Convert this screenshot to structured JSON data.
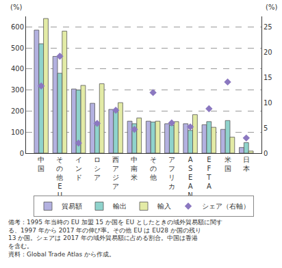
{
  "chart_data": {
    "type": "bar",
    "categories": [
      "中国",
      "その他EU",
      "インド",
      "ロシア",
      "西アジア",
      "中南米",
      "その他",
      "アフリカ",
      "ASEAN",
      "EFTA",
      "米国",
      "日本"
    ],
    "series": [
      {
        "name": "貿易額",
        "type": "bar",
        "color": "#b3b1e0",
        "values": [
          585,
          460,
          305,
          237,
          208,
          152,
          152,
          140,
          140,
          135,
          113,
          27
        ]
      },
      {
        "name": "輸出",
        "type": "bar",
        "color": "#8fd3cc",
        "values": [
          520,
          380,
          300,
          147,
          200,
          140,
          148,
          132,
          108,
          150,
          155,
          50
        ]
      },
      {
        "name": "輸入",
        "type": "bar",
        "color": "#e3eba6",
        "values": [
          640,
          580,
          322,
          330,
          240,
          167,
          152,
          150,
          183,
          123,
          76,
          10
        ]
      },
      {
        "name": "シェア（右軸）",
        "type": "scatter",
        "axis": "y2",
        "marker": "diamond",
        "color": "#8b78c0",
        "values": [
          13.3,
          19.2,
          2.0,
          5.9,
          8.5,
          4.7,
          12.0,
          6.0,
          5.2,
          8.8,
          14.1,
          3.0
        ]
      }
    ],
    "ylabel": "(%)",
    "y2label": "(%)",
    "ylim": [
      0,
      650
    ],
    "yticks": [
      0,
      100,
      200,
      300,
      400,
      500,
      600
    ],
    "y2lim": [
      0,
      27.0833
    ],
    "y2ticks": [
      0,
      5,
      10,
      15,
      20,
      25
    ],
    "grid": true,
    "legend": "bottom",
    "annotations": [
      "備考：1995 年当時の EU 加盟 15 か国を EU としたときの域外貿易額に関す",
      "る、1997 年から 2017 年の伸び率。その他 EU は EU28 か国の残り",
      "13 か国。シェアは 2017 年の域外貿易額に占める割合。中国は香港",
      "を含む。",
      "資料：Global Trade Atlas から作成。"
    ]
  }
}
